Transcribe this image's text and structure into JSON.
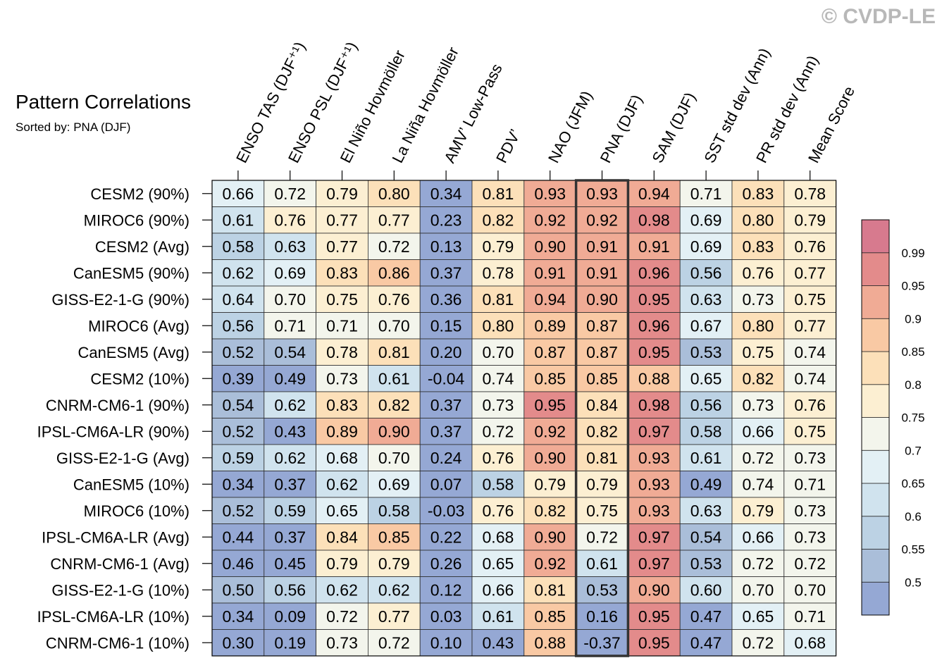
{
  "chart_data": {
    "type": "heatmap",
    "title": "Pattern Correlations",
    "subtitle": "Sorted by: PNA (DJF)",
    "watermark": "© CVDP-LE",
    "highlight_column": "PNA (DJF)",
    "columns": [
      "ENSO TAS (DJF⁺¹)",
      "ENSO PSL (DJF⁺¹)",
      "El Niño Hovmöller",
      "La Niña Hovmöller",
      "AMV’ Low-Pass",
      "PDV’",
      "NAO (JFM)",
      "PNA (DJF)",
      "SAM (DJF)",
      "SST std dev (Ann)",
      "PR std dev (Ann)",
      "Mean Score"
    ],
    "rows": [
      "CESM2 (90%)",
      "MIROC6 (90%)",
      "CESM2 (Avg)",
      "CanESM5 (90%)",
      "GISS-E2-1-G (90%)",
      "MIROC6 (Avg)",
      "CanESM5 (Avg)",
      "CESM2 (10%)",
      "CNRM-CM6-1 (90%)",
      "IPSL-CM6A-LR (90%)",
      "GISS-E2-1-G (Avg)",
      "CanESM5 (10%)",
      "MIROC6 (10%)",
      "IPSL-CM6A-LR (Avg)",
      "CNRM-CM6-1 (Avg)",
      "GISS-E2-1-G (10%)",
      "IPSL-CM6A-LR (10%)",
      "CNRM-CM6-1 (10%)"
    ],
    "values": [
      [
        "0.66",
        "0.72",
        "0.79",
        "0.80",
        "0.34",
        "0.81",
        "0.93",
        "0.93",
        "0.94",
        "0.71",
        "0.83",
        "0.78"
      ],
      [
        "0.61",
        "0.76",
        "0.77",
        "0.77",
        "0.23",
        "0.82",
        "0.92",
        "0.92",
        "0.98",
        "0.69",
        "0.80",
        "0.79"
      ],
      [
        "0.58",
        "0.63",
        "0.77",
        "0.72",
        "0.13",
        "0.79",
        "0.90",
        "0.91",
        "0.91",
        "0.69",
        "0.83",
        "0.76"
      ],
      [
        "0.62",
        "0.69",
        "0.83",
        "0.86",
        "0.37",
        "0.78",
        "0.91",
        "0.91",
        "0.96",
        "0.56",
        "0.76",
        "0.77"
      ],
      [
        "0.64",
        "0.70",
        "0.75",
        "0.76",
        "0.36",
        "0.81",
        "0.94",
        "0.90",
        "0.95",
        "0.63",
        "0.73",
        "0.75"
      ],
      [
        "0.56",
        "0.71",
        "0.71",
        "0.70",
        "0.15",
        "0.80",
        "0.89",
        "0.87",
        "0.96",
        "0.67",
        "0.80",
        "0.77"
      ],
      [
        "0.52",
        "0.54",
        "0.78",
        "0.81",
        "0.20",
        "0.70",
        "0.87",
        "0.87",
        "0.95",
        "0.53",
        "0.75",
        "0.74"
      ],
      [
        "0.39",
        "0.49",
        "0.73",
        "0.61",
        "-0.04",
        "0.74",
        "0.85",
        "0.85",
        "0.88",
        "0.65",
        "0.82",
        "0.74"
      ],
      [
        "0.54",
        "0.62",
        "0.83",
        "0.82",
        "0.37",
        "0.73",
        "0.95",
        "0.84",
        "0.98",
        "0.56",
        "0.73",
        "0.76"
      ],
      [
        "0.52",
        "0.43",
        "0.89",
        "0.90",
        "0.37",
        "0.72",
        "0.92",
        "0.82",
        "0.97",
        "0.58",
        "0.66",
        "0.75"
      ],
      [
        "0.59",
        "0.62",
        "0.68",
        "0.70",
        "0.24",
        "0.76",
        "0.90",
        "0.81",
        "0.93",
        "0.61",
        "0.72",
        "0.73"
      ],
      [
        "0.34",
        "0.37",
        "0.62",
        "0.69",
        "0.07",
        "0.58",
        "0.79",
        "0.79",
        "0.93",
        "0.49",
        "0.74",
        "0.71"
      ],
      [
        "0.52",
        "0.59",
        "0.65",
        "0.58",
        "-0.03",
        "0.76",
        "0.82",
        "0.75",
        "0.93",
        "0.63",
        "0.79",
        "0.73"
      ],
      [
        "0.44",
        "0.37",
        "0.84",
        "0.85",
        "0.22",
        "0.68",
        "0.90",
        "0.72",
        "0.97",
        "0.54",
        "0.66",
        "0.73"
      ],
      [
        "0.46",
        "0.45",
        "0.79",
        "0.79",
        "0.26",
        "0.65",
        "0.92",
        "0.61",
        "0.97",
        "0.53",
        "0.72",
        "0.72"
      ],
      [
        "0.50",
        "0.56",
        "0.62",
        "0.62",
        "0.12",
        "0.66",
        "0.81",
        "0.53",
        "0.90",
        "0.60",
        "0.70",
        "0.70"
      ],
      [
        "0.34",
        "0.09",
        "0.72",
        "0.77",
        "0.03",
        "0.61",
        "0.85",
        "0.16",
        "0.95",
        "0.47",
        "0.65",
        "0.71"
      ],
      [
        "0.30",
        "0.19",
        "0.73",
        "0.72",
        "0.10",
        "0.43",
        "0.88",
        "-0.37",
        "0.95",
        "0.47",
        "0.72",
        "0.68"
      ]
    ],
    "colorbar": {
      "labels": [
        "0.99",
        "0.95",
        "0.9",
        "0.85",
        "0.8",
        "0.75",
        "0.7",
        "0.65",
        "0.6",
        "0.55",
        "0.5"
      ],
      "levels": [
        0.5,
        0.55,
        0.6,
        0.65,
        0.7,
        0.75,
        0.8,
        0.85,
        0.9,
        0.95,
        0.99
      ],
      "colors": [
        "#95a8d4",
        "#aabed9",
        "#bcd2e4",
        "#d0e3ee",
        "#e3f0f5",
        "#f3f5ec",
        "#fcefd2",
        "#fce0b9",
        "#f9c9a4",
        "#f0ab95",
        "#e38b8b",
        "#d77a8e"
      ]
    }
  }
}
